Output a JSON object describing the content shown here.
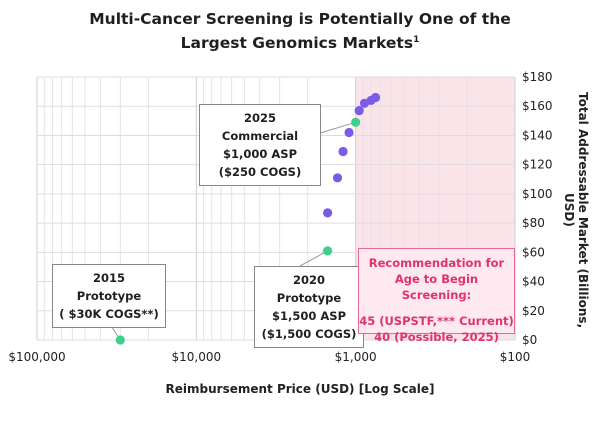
{
  "title_line1": "Multi-Cancer Screening is Potentially One of the",
  "title_line2": "Largest Genomics Markets",
  "title_sup": "1",
  "chart_data": {
    "type": "scatter",
    "xlabel": "Reimbursement Price (USD) [Log Scale]",
    "ylabel": "Total Addressable Market (Billions, USD)",
    "x_scale": "log",
    "x_reversed": true,
    "xlim": [
      100000,
      100
    ],
    "ylim": [
      0,
      180
    ],
    "x_ticks": [
      100000,
      10000,
      1000,
      100
    ],
    "x_tick_labels": [
      "$100,000",
      "$10,000",
      "$1,000",
      "$100"
    ],
    "y_ticks": [
      0,
      20,
      40,
      60,
      80,
      100,
      120,
      140,
      160,
      180
    ],
    "y_tick_labels": [
      "$0",
      "$20",
      "$40",
      "$60",
      "$80",
      "$100",
      "$120",
      "$140",
      "$160",
      "$180"
    ],
    "grid": true,
    "highlight_region": {
      "x_from": 1000,
      "x_to": 100,
      "color": "#fbe3ea"
    },
    "series": [
      {
        "color": "#3ecf8e",
        "points": [
          [
            30000,
            0
          ],
          [
            1500,
            61
          ],
          [
            1000,
            149
          ]
        ]
      },
      {
        "color": "#7b5ce6",
        "points": [
          [
            1500,
            87
          ],
          [
            1300,
            111
          ],
          [
            1200,
            129
          ],
          [
            1100,
            142
          ],
          [
            950,
            157
          ],
          [
            880,
            162
          ],
          [
            800,
            164
          ],
          [
            750,
            166
          ]
        ]
      }
    ]
  },
  "callouts": {
    "c2025": {
      "line1": "2025 Commercial",
      "line2": "$1,000 ASP",
      "line3": "($250 COGS)"
    },
    "c2020": {
      "line1": "2020 Prototype",
      "line2": "$1,500 ASP",
      "line3": "($1,500 COGS)"
    },
    "c2015": {
      "line1": "2015 Prototype",
      "line2": "( $30K COGS**)"
    }
  },
  "recommendation": {
    "line1": "Recommendation for",
    "line2": "Age to Begin Screening:",
    "line3": "45 (USPSTF,*** Current)",
    "line4": "40 (Possible, 2025)"
  }
}
